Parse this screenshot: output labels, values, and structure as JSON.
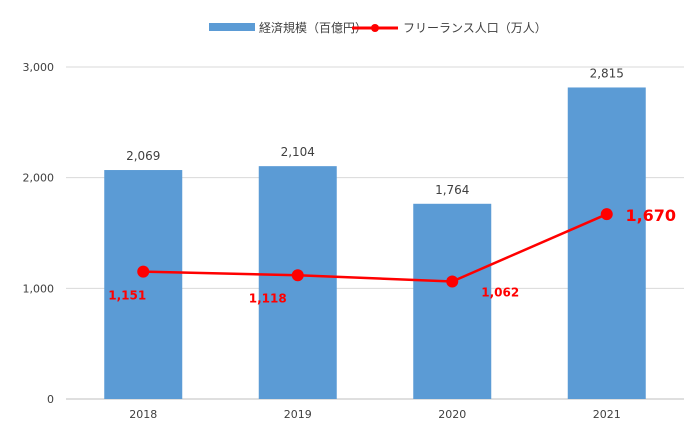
{
  "chart_data": {
    "type": "bar",
    "categories": [
      "2018",
      "2019",
      "2020",
      "2021"
    ],
    "series": [
      {
        "name": "経済規模（百億円）",
        "type": "bar",
        "values": [
          2069,
          2104,
          1764,
          2815
        ],
        "data_labels": [
          "2,069",
          "2,104",
          "1,764",
          "2,815"
        ],
        "color": "#5b9bd5"
      },
      {
        "name": "フリーランス人口（万人）",
        "type": "line",
        "values": [
          1151,
          1118,
          1062,
          1670
        ],
        "data_labels": [
          "1,151",
          "1,118",
          "1,062",
          "1,670"
        ],
        "color": "#ff0000"
      }
    ],
    "y_ticks": [
      "0",
      "1,000",
      "2,000",
      "3,000"
    ],
    "ylim": [
      0,
      3000
    ],
    "grid": true,
    "legend_position": "top"
  }
}
